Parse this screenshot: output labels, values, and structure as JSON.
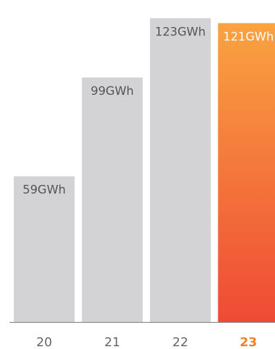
{
  "chart_data": {
    "type": "bar",
    "categories": [
      "20",
      "21",
      "22",
      "23"
    ],
    "values": [
      59,
      99,
      123,
      121
    ],
    "value_labels": [
      "59GWh",
      "99GWh",
      "123GWh",
      "121GWh"
    ],
    "unit": "GWh",
    "highlight_index": 3,
    "title": "",
    "xlabel": "",
    "ylabel": "",
    "ylim": [
      0,
      127
    ],
    "grid": false,
    "legend": "none",
    "colors": {
      "bar": "#d3d3d5",
      "highlight_top": "#f9a341",
      "highlight_bottom": "#ef4a35",
      "label_text": "#555555",
      "highlight_label_text": "#ffffff",
      "tick_text": "#666666",
      "highlight_tick_text": "#f0822a",
      "axis_line": "#777777"
    }
  }
}
